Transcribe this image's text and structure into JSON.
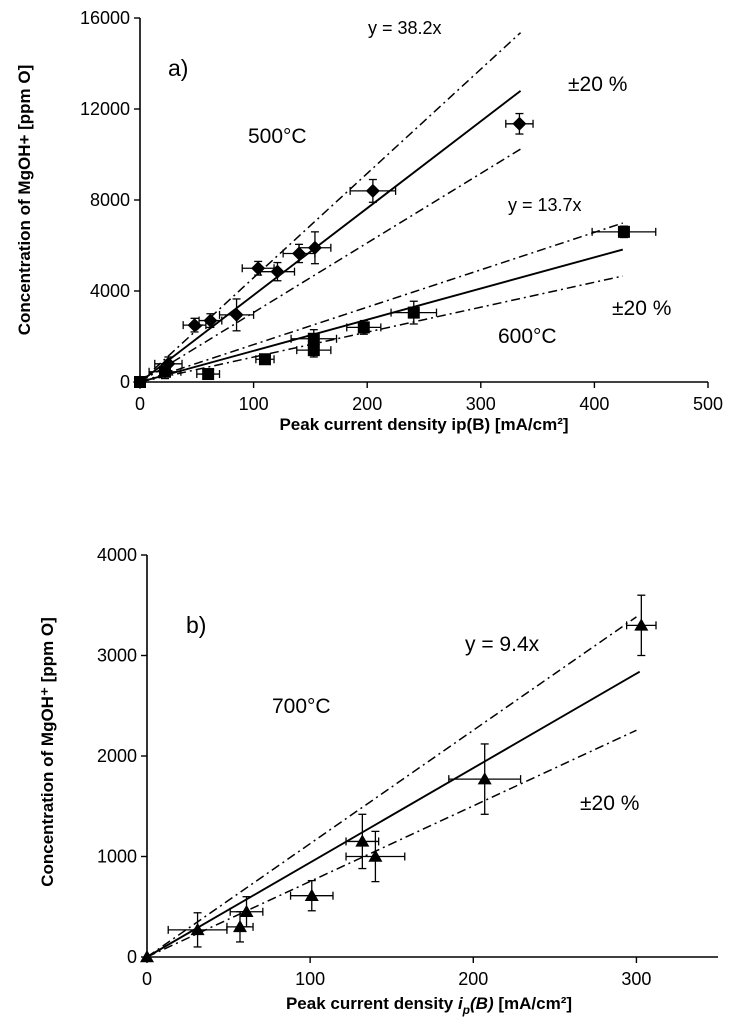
{
  "chart_data": [
    {
      "type": "scatter",
      "panel_label": "a)",
      "xlabel": "Peak current density ip(B) [mA/cm²]",
      "ylabel": "Concentration of MgOH+ [ppm O]",
      "xlim": [
        0,
        500
      ],
      "ylim": [
        0,
        16000
      ],
      "xticks": [
        "0",
        "100",
        "200",
        "300",
        "400",
        "500"
      ],
      "yticks": [
        "0",
        "4000",
        "8000",
        "12000",
        "16000"
      ],
      "grid": false,
      "annotations": {
        "fit_500": "y = 38.2x",
        "fit_600": "y = 13.7x",
        "band_500": "±20 %",
        "band_600": "±20 %",
        "temp_500": "500°C",
        "temp_600": "600°C"
      },
      "series": [
        {
          "name": "500°C",
          "marker": "diamond",
          "points": [
            {
              "x": 0,
              "y": 0,
              "xerr": 0,
              "yerr": 0
            },
            {
              "x": 25,
              "y": 800,
              "xerr": 12,
              "yerr": 300
            },
            {
              "x": 48,
              "y": 2500,
              "xerr": 10,
              "yerr": 300
            },
            {
              "x": 62,
              "y": 2700,
              "xerr": 10,
              "yerr": 300
            },
            {
              "x": 85,
              "y": 2950,
              "xerr": 15,
              "yerr": 700
            },
            {
              "x": 104,
              "y": 5000,
              "xerr": 14,
              "yerr": 300
            },
            {
              "x": 121,
              "y": 4850,
              "xerr": 15,
              "yerr": 400
            },
            {
              "x": 140,
              "y": 5650,
              "xerr": 14,
              "yerr": 400
            },
            {
              "x": 154,
              "y": 5900,
              "xerr": 14,
              "yerr": 700
            },
            {
              "x": 205,
              "y": 8400,
              "xerr": 20,
              "yerr": 500
            },
            {
              "x": 334,
              "y": 11350,
              "xerr": 12,
              "yerr": 450
            }
          ],
          "fit": {
            "slope": 38.2,
            "x_end": 335
          },
          "band": {
            "upper_slope": 45.84,
            "lower_slope": 30.56,
            "x_end": 335
          }
        },
        {
          "name": "600°C",
          "marker": "square",
          "points": [
            {
              "x": 0,
              "y": 0,
              "xerr": 0,
              "yerr": 0
            },
            {
              "x": 22,
              "y": 450,
              "xerr": 14,
              "yerr": 300
            },
            {
              "x": 60,
              "y": 350,
              "xerr": 10,
              "yerr": 200
            },
            {
              "x": 110,
              "y": 1000,
              "xerr": 8,
              "yerr": 200
            },
            {
              "x": 153,
              "y": 1900,
              "xerr": 20,
              "yerr": 400
            },
            {
              "x": 153,
              "y": 1400,
              "xerr": 15,
              "yerr": 300
            },
            {
              "x": 197,
              "y": 2400,
              "xerr": 15,
              "yerr": 300
            },
            {
              "x": 241,
              "y": 3050,
              "xerr": 20,
              "yerr": 500
            },
            {
              "x": 426,
              "y": 6600,
              "xerr": 28,
              "yerr": 250
            }
          ],
          "fit": {
            "slope": 13.7,
            "x_end": 425
          },
          "band": {
            "upper_slope": 16.44,
            "lower_slope": 10.96,
            "x_end": 425
          }
        }
      ]
    },
    {
      "type": "scatter",
      "panel_label": "b)",
      "xlabel_parts": [
        "Peak current density ",
        "i",
        "p",
        "(B)",
        " [mA/cm²]"
      ],
      "ylabel": "Concentration of MgOH⁺ [ppm O]",
      "xlim": [
        0,
        350
      ],
      "ylim": [
        0,
        4000
      ],
      "xticks": [
        "0",
        "100",
        "200",
        "300"
      ],
      "yticks": [
        "0",
        "1000",
        "2000",
        "3000",
        "4000"
      ],
      "grid": false,
      "annotations": {
        "fit_700": "y = 9.4x",
        "band_700": "±20 %",
        "temp_700": "700°C"
      },
      "series": [
        {
          "name": "700°C",
          "marker": "triangle",
          "points": [
            {
              "x": 0,
              "y": 0,
              "xerr": 0,
              "yerr": 0
            },
            {
              "x": 31,
              "y": 270,
              "xerr": 18,
              "yerr": 170
            },
            {
              "x": 57,
              "y": 300,
              "xerr": 8,
              "yerr": 150
            },
            {
              "x": 61,
              "y": 450,
              "xerr": 10,
              "yerr": 150
            },
            {
              "x": 101,
              "y": 610,
              "xerr": 13,
              "yerr": 150
            },
            {
              "x": 132,
              "y": 1150,
              "xerr": 10,
              "yerr": 270
            },
            {
              "x": 140,
              "y": 1000,
              "xerr": 18,
              "yerr": 250
            },
            {
              "x": 207,
              "y": 1770,
              "xerr": 22,
              "yerr": 350
            },
            {
              "x": 303,
              "y": 3300,
              "xerr": 9,
              "yerr": 300
            }
          ],
          "fit": {
            "slope": 9.4,
            "x_end": 302
          },
          "band": {
            "upper_slope": 11.28,
            "lower_slope": 7.52,
            "x_end": 300
          }
        }
      ]
    }
  ]
}
